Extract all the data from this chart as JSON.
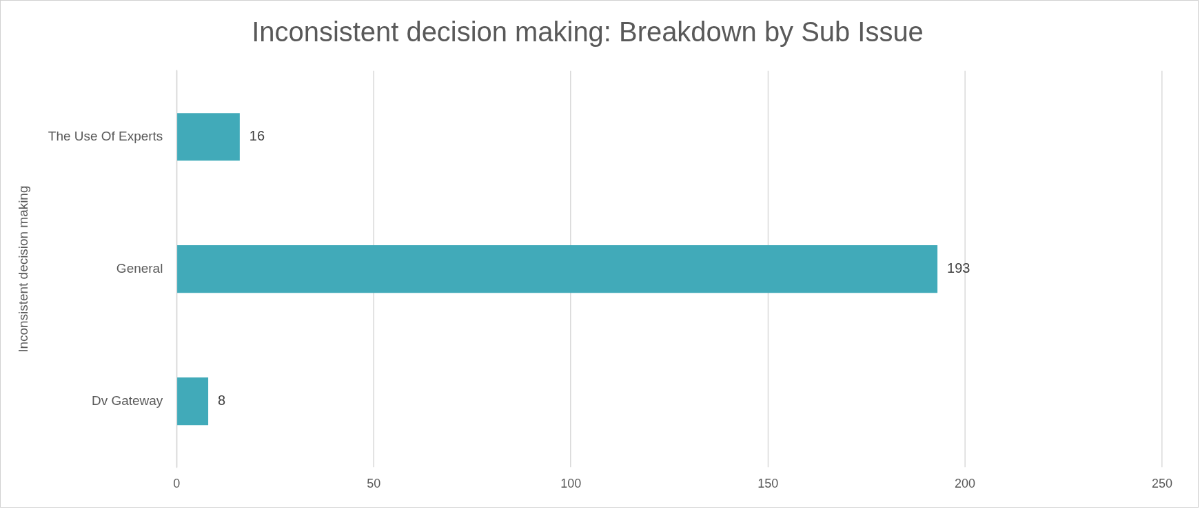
{
  "chart_data": {
    "type": "bar",
    "orientation": "horizontal",
    "title": "Inconsistent decision making: Breakdown by Sub Issue",
    "ylabel": "Inconsistent decision making",
    "categories": [
      "The Use Of Experts",
      "General",
      "Dv Gateway"
    ],
    "values": [
      16,
      193,
      8
    ],
    "color": "#41aab9",
    "xlim": [
      0,
      250
    ],
    "xticks": [
      0,
      50,
      100,
      150,
      200,
      250
    ],
    "grid": "x",
    "legend": false,
    "data_labels": true
  }
}
